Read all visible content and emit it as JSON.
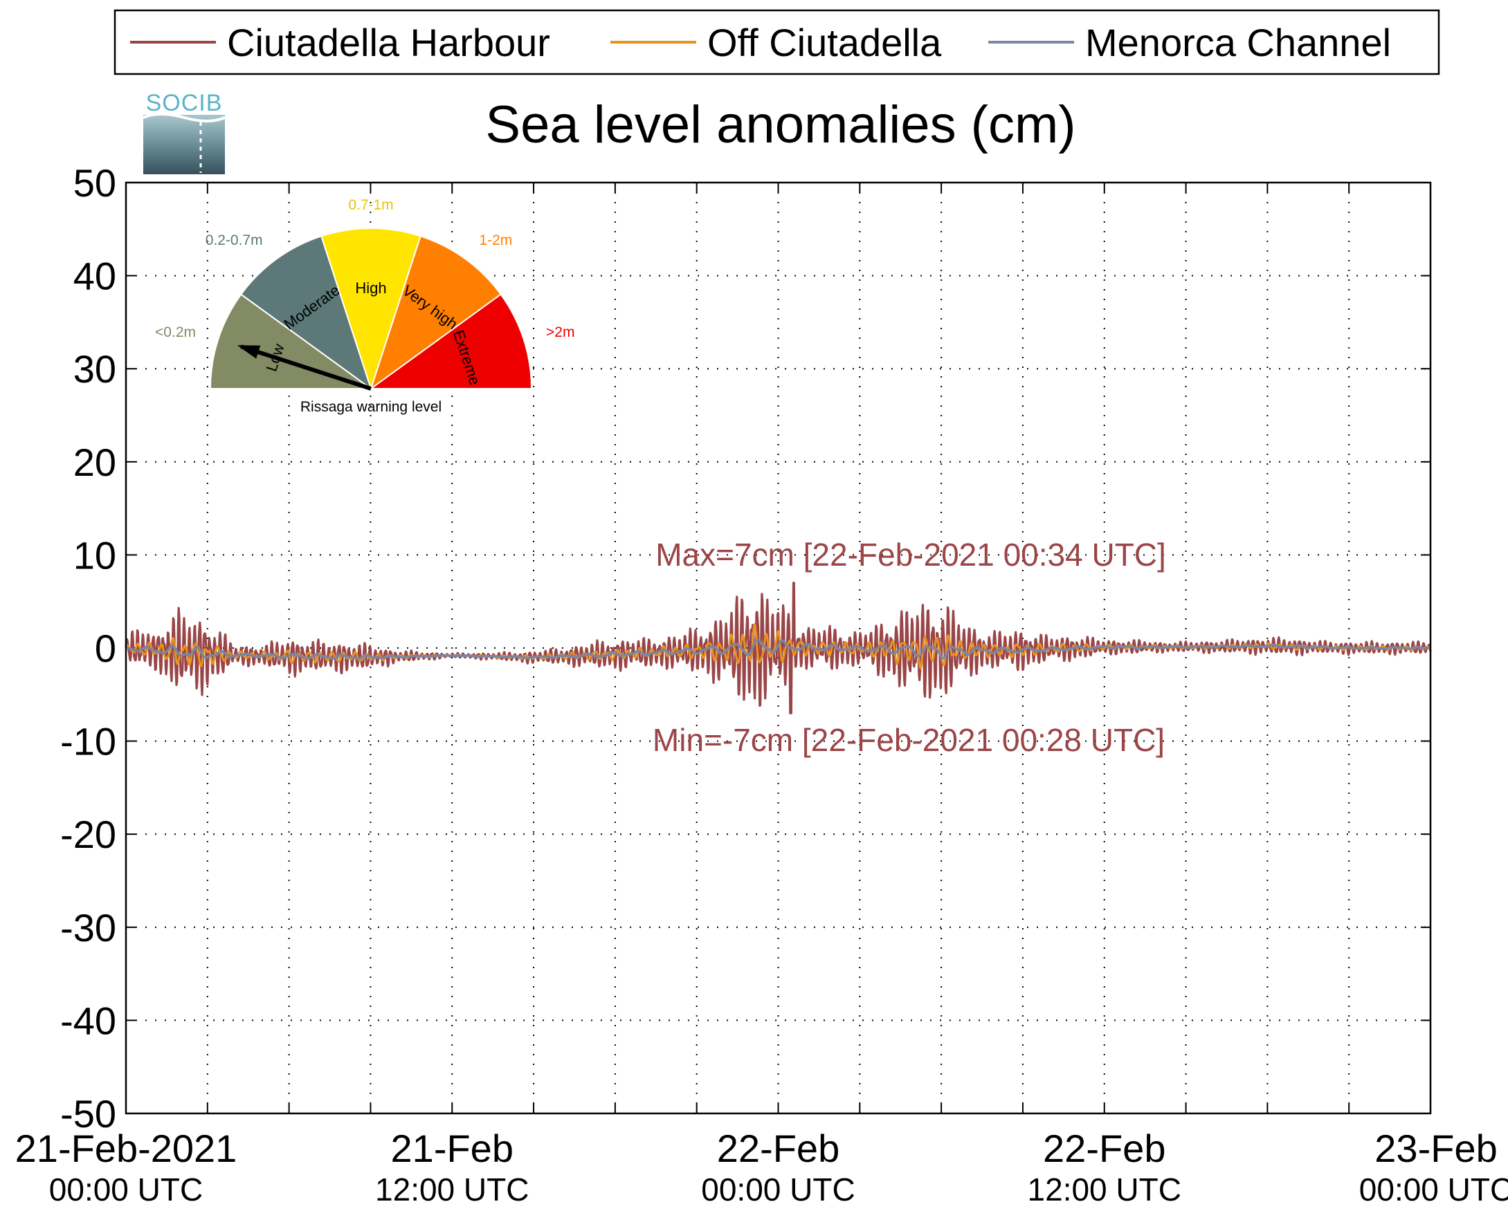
{
  "chart_data": {
    "type": "line",
    "title": "Sea level anomalies (cm)",
    "xlabel": "",
    "ylabel": "",
    "ylim": [
      -50,
      50
    ],
    "yticks": [
      50,
      40,
      30,
      20,
      10,
      0,
      -10,
      -20,
      -30,
      -40,
      -50
    ],
    "xlim_hours": [
      0,
      48
    ],
    "xtick_labels": [
      {
        "date": "21-Feb-2021",
        "time": "00:00 UTC",
        "hour": 0
      },
      {
        "date": "21-Feb",
        "time": "12:00 UTC",
        "hour": 12
      },
      {
        "date": "22-Feb",
        "time": "00:00 UTC",
        "hour": 24
      },
      {
        "date": "22-Feb",
        "time": "12:00 UTC",
        "hour": 36
      },
      {
        "date": "23-Feb",
        "time": "00:00 UTC",
        "hour": 48
      }
    ],
    "grid": true,
    "legend_placement": "top",
    "series": [
      {
        "name": "Ciutadella Harbour",
        "color": "#9a4547",
        "envelope_x": [
          0,
          0.5,
          1,
          1.5,
          2,
          3,
          4,
          5,
          6,
          7,
          8,
          9,
          10,
          11,
          12,
          13,
          14,
          15,
          16,
          17,
          18,
          19,
          20,
          21,
          22,
          23,
          24,
          25,
          26,
          27,
          28,
          29,
          30,
          31,
          32,
          33,
          34,
          35,
          36,
          37,
          38,
          39,
          40,
          41,
          42,
          43,
          44,
          45,
          46,
          47,
          48
        ],
        "envelope_amp": [
          0.8,
          2.5,
          1.5,
          3.5,
          4,
          3.5,
          1.0,
          1.0,
          1.8,
          1.5,
          1.5,
          1.2,
          0.6,
          0.4,
          0.2,
          0.3,
          0.4,
          0.6,
          0.8,
          1.2,
          1.5,
          1.4,
          1.6,
          2.2,
          3.5,
          6.5,
          4.5,
          2.0,
          2.2,
          1.6,
          3.0,
          4.5,
          5.0,
          2.5,
          1.8,
          2.0,
          1.2,
          1.2,
          0.7,
          0.7,
          0.5,
          0.5,
          0.6,
          0.7,
          0.8,
          0.8,
          0.6,
          0.6,
          0.6,
          0.6,
          0.6
        ],
        "max_value": 7,
        "min_value": -7
      },
      {
        "name": "Off Ciutadella",
        "color": "#e8931e",
        "envelope_amp_factor": 0.35
      },
      {
        "name": "Menorca Channel",
        "color": "#7a86a3",
        "envelope_amp_factor": 0.15
      }
    ],
    "baseline_x": [
      0,
      3,
      6,
      9,
      12,
      15,
      18,
      21,
      24,
      27,
      30,
      33,
      36,
      39,
      42,
      45,
      48
    ],
    "baseline_y": [
      0,
      -0.7,
      -0.9,
      -1.0,
      -0.8,
      -1.0,
      -0.7,
      -0.3,
      0.1,
      -0.1,
      -0.3,
      -0.2,
      0.1,
      0.1,
      0.2,
      0.0,
      0.0
    ],
    "annotations": {
      "max": "Max=7cm [22-Feb-2021 00:34 UTC]",
      "min": "Min=-7cm [22-Feb-2021 00:28 UTC]"
    }
  },
  "logo": {
    "text": "SOCIB"
  },
  "gauge": {
    "caption": "Rissaga warning level",
    "level_fraction": 0.1,
    "segments": [
      {
        "label": "Low",
        "range": "<0.2m",
        "color": "#838b64",
        "range_color": "#838b64"
      },
      {
        "label": "Moderate",
        "range": "0.2-0.7m",
        "color": "#5d7878",
        "range_color": "#5d7878"
      },
      {
        "label": "High",
        "range": "0.7-1m",
        "color": "#ffe500",
        "range_color": "#e6c800"
      },
      {
        "label": "Very high",
        "range": "1-2m",
        "color": "#ff8000",
        "range_color": "#ff8000"
      },
      {
        "label": "Extreme",
        "range": ">2m",
        "color": "#ee0000",
        "range_color": "#ee0000"
      }
    ]
  }
}
